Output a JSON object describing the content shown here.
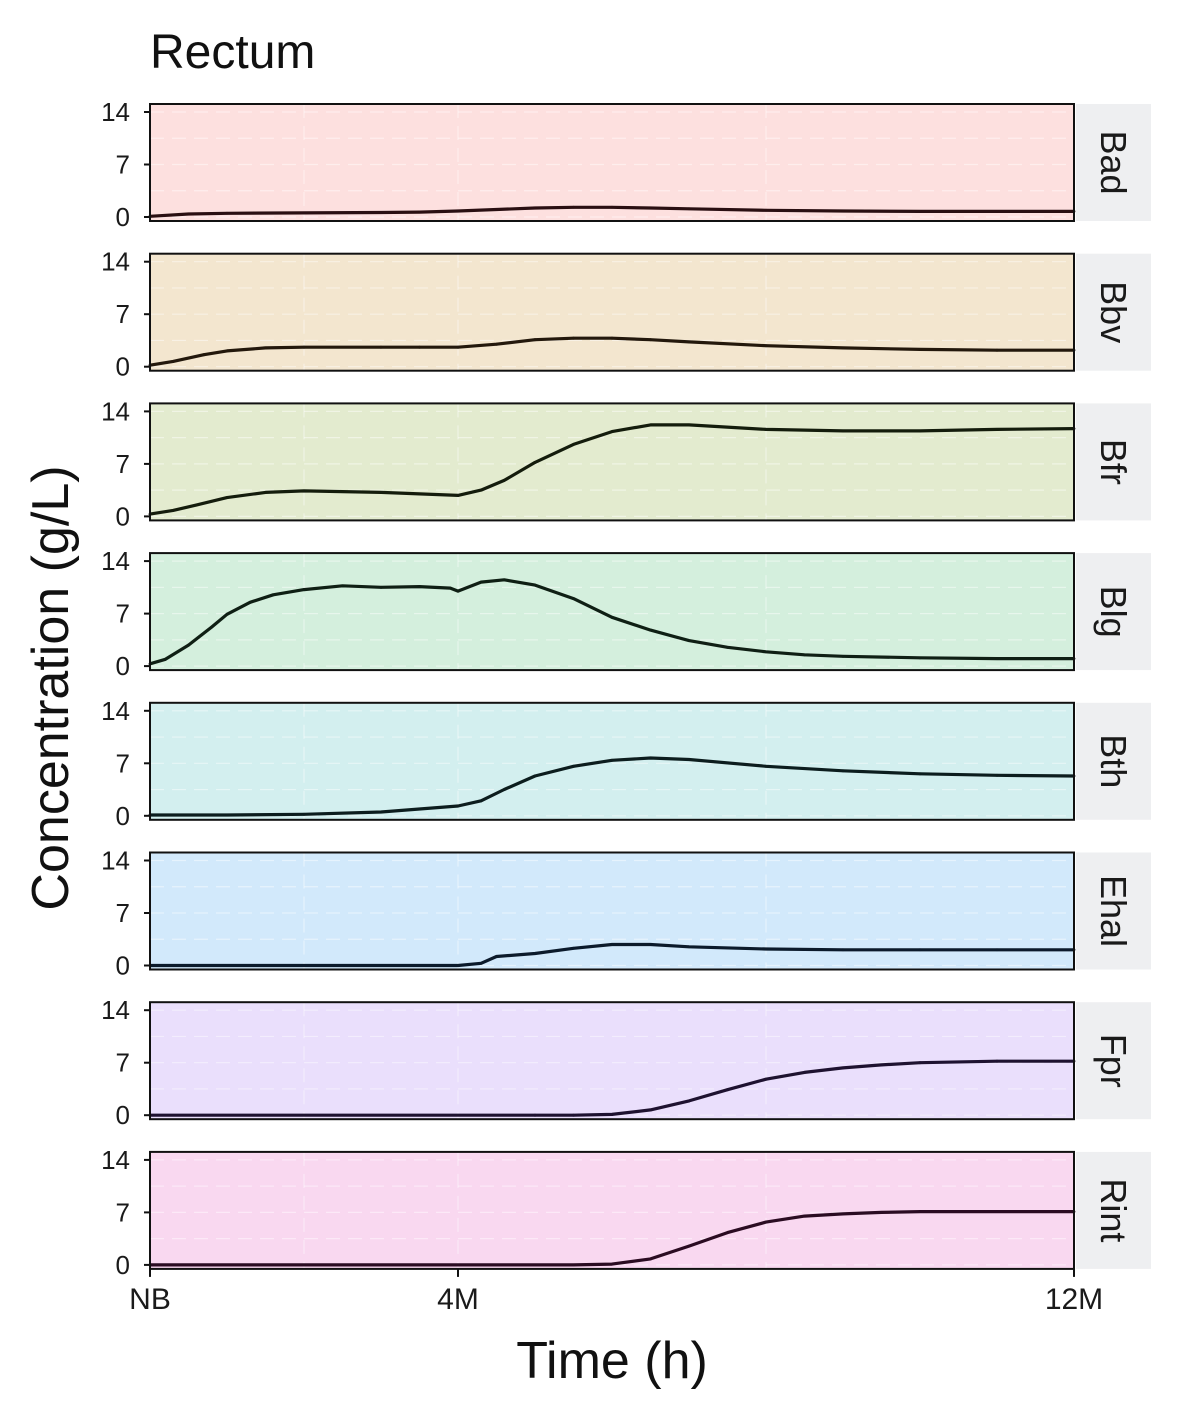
{
  "chart_data": {
    "type": "line",
    "title": "Rectum",
    "xlabel": "Time (h)",
    "ylabel": "Concentration (g/L)",
    "xlim": [
      0,
      12
    ],
    "ylim": [
      0,
      14
    ],
    "x_ticks": [
      {
        "value": 0,
        "label": "NB"
      },
      {
        "value": 4,
        "label": "4M"
      },
      {
        "value": 12,
        "label": "12M"
      }
    ],
    "y_ticks": [
      0,
      7,
      14
    ],
    "facet_layout": "vertical",
    "series": [
      {
        "name": "Bad",
        "bg": "#fde0df",
        "line": "#2a0f12",
        "x": [
          0,
          0.5,
          1,
          2,
          3,
          3.5,
          4,
          4.5,
          5,
          5.5,
          6,
          6.5,
          7,
          8,
          9,
          10,
          11,
          12
        ],
        "values": [
          0.1,
          0.4,
          0.5,
          0.55,
          0.6,
          0.65,
          0.8,
          1.0,
          1.2,
          1.3,
          1.3,
          1.2,
          1.1,
          0.9,
          0.8,
          0.75,
          0.75,
          0.75
        ]
      },
      {
        "name": "Bbv",
        "bg": "#f3e6cf",
        "line": "#23180c",
        "x": [
          0,
          0.3,
          0.7,
          1,
          1.5,
          2,
          3,
          3.5,
          4,
          4.5,
          5,
          5.5,
          6,
          6.5,
          7,
          8,
          9,
          10,
          11,
          12
        ],
        "values": [
          0.2,
          0.7,
          1.6,
          2.1,
          2.5,
          2.6,
          2.6,
          2.6,
          2.6,
          3.0,
          3.6,
          3.8,
          3.8,
          3.6,
          3.3,
          2.8,
          2.5,
          2.3,
          2.2,
          2.2
        ]
      },
      {
        "name": "Bfr",
        "bg": "#e3ebcf",
        "line": "#141c0c",
        "x": [
          0,
          0.3,
          0.6,
          1,
          1.5,
          2,
          2.5,
          3,
          3.5,
          4,
          4.3,
          4.6,
          5,
          5.5,
          6,
          6.5,
          7,
          8,
          9,
          10,
          11,
          12
        ],
        "values": [
          0.3,
          0.8,
          1.5,
          2.5,
          3.2,
          3.4,
          3.3,
          3.2,
          3.0,
          2.8,
          3.5,
          4.8,
          7.2,
          9.6,
          11.3,
          12.2,
          12.2,
          11.6,
          11.4,
          11.4,
          11.6,
          11.7
        ]
      },
      {
        "name": "Blg",
        "bg": "#d4efdd",
        "line": "#0f1f14",
        "x": [
          0,
          0.2,
          0.5,
          0.8,
          1,
          1.3,
          1.6,
          2,
          2.5,
          3,
          3.5,
          3.9,
          4,
          4.3,
          4.6,
          5,
          5.5,
          6,
          6.5,
          7,
          7.5,
          8,
          8.5,
          9,
          10,
          11,
          12
        ],
        "values": [
          0.3,
          0.9,
          2.8,
          5.2,
          6.9,
          8.5,
          9.5,
          10.2,
          10.7,
          10.5,
          10.6,
          10.4,
          10.0,
          11.2,
          11.5,
          10.8,
          9.0,
          6.5,
          4.8,
          3.4,
          2.5,
          1.9,
          1.5,
          1.3,
          1.1,
          1.0,
          1.0
        ]
      },
      {
        "name": "Bth",
        "bg": "#d3efef",
        "line": "#0c1d1e",
        "x": [
          0,
          1,
          2,
          3,
          3.5,
          4,
          4.3,
          4.6,
          5,
          5.5,
          6,
          6.5,
          7,
          8,
          9,
          10,
          11,
          12
        ],
        "values": [
          0.1,
          0.1,
          0.2,
          0.5,
          0.9,
          1.3,
          2.0,
          3.5,
          5.3,
          6.6,
          7.4,
          7.7,
          7.5,
          6.6,
          6.0,
          5.6,
          5.4,
          5.3
        ]
      },
      {
        "name": "Ehal",
        "bg": "#d2e9fb",
        "line": "#0b1a2b",
        "x": [
          0,
          3,
          4,
          4.3,
          4.5,
          5,
          5.5,
          6,
          6.5,
          7,
          8,
          9,
          10,
          11,
          12
        ],
        "values": [
          0,
          0,
          0,
          0.3,
          1.2,
          1.6,
          2.3,
          2.8,
          2.8,
          2.5,
          2.2,
          2.1,
          2.1,
          2.1,
          2.1
        ]
      },
      {
        "name": "Fpr",
        "bg": "#eadffc",
        "line": "#1e1230",
        "x": [
          0,
          5,
          5.5,
          6,
          6.5,
          7,
          7.5,
          8,
          8.5,
          9,
          9.5,
          10,
          11,
          12
        ],
        "values": [
          0,
          0,
          0,
          0.1,
          0.7,
          1.9,
          3.4,
          4.8,
          5.7,
          6.3,
          6.7,
          7.0,
          7.2,
          7.2
        ]
      },
      {
        "name": "Rint",
        "bg": "#f9d8f0",
        "line": "#2b0c22",
        "x": [
          0,
          5,
          5.5,
          6,
          6.5,
          7,
          7.5,
          8,
          8.5,
          9,
          9.5,
          10,
          11,
          12
        ],
        "values": [
          0,
          0,
          0,
          0.1,
          0.8,
          2.5,
          4.3,
          5.7,
          6.5,
          6.8,
          7.0,
          7.1,
          7.1,
          7.1
        ]
      }
    ]
  }
}
